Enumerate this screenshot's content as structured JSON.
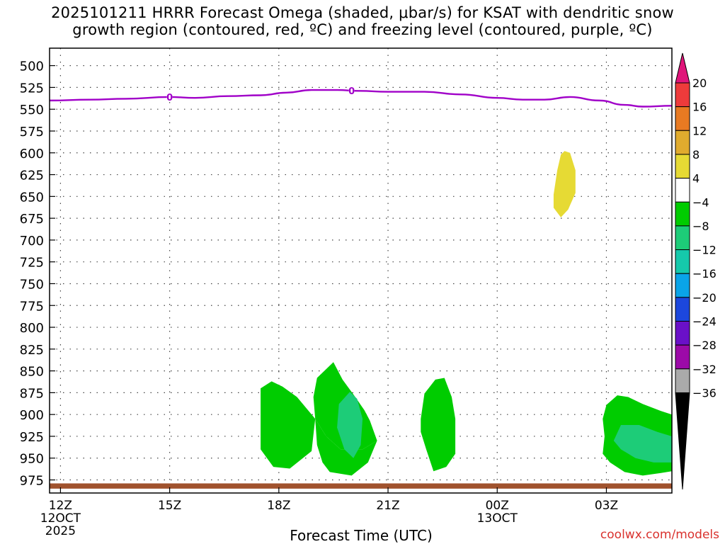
{
  "chart_data": {
    "type": "heatmap",
    "title_line1": "2025101211 HRRR Forecast Omega (shaded, μbar/s) for KSAT with dendritic snow",
    "title_line2": "growth region (contoured, red, ºC) and freezing level (contoured, purple, ºC)",
    "xlabel": "Forecast Time (UTC)",
    "credit": "coolwx.com/models",
    "x_range_hours": [
      -0.3,
      16.8
    ],
    "y_range_hpa": [
      480,
      990
    ],
    "x_ticks": [
      {
        "h": 0,
        "line1": "12Z",
        "line2": "12OCT",
        "line3": "2025"
      },
      {
        "h": 3,
        "line1": "15Z",
        "line2": "",
        "line3": ""
      },
      {
        "h": 6,
        "line1": "18Z",
        "line2": "",
        "line3": ""
      },
      {
        "h": 9,
        "line1": "21Z",
        "line2": "",
        "line3": ""
      },
      {
        "h": 12,
        "line1": "00Z",
        "line2": "13OCT",
        "line3": ""
      },
      {
        "h": 15,
        "line1": "03Z",
        "line2": "",
        "line3": ""
      }
    ],
    "y_ticks": [
      500,
      525,
      550,
      575,
      600,
      625,
      650,
      675,
      700,
      725,
      750,
      775,
      800,
      825,
      850,
      875,
      900,
      925,
      950,
      975
    ],
    "colorbar": {
      "labels": [
        "20",
        "16",
        "12",
        "8",
        "4",
        "−4",
        "−8",
        "−12",
        "−16",
        "−20",
        "−24",
        "−28",
        "−32",
        "−36"
      ],
      "colors": [
        "#ee3b3b",
        "#e87a22",
        "#e0ab2e",
        "#e6da34",
        "#ffffff",
        "#00cc00",
        "#1dcc78",
        "#15c9ab",
        "#0aa4e8",
        "#1c47dd",
        "#6a10c8",
        "#9c0aa8",
        "#aaaaaa"
      ],
      "top_color": "#e0157a",
      "bottom_color": "#000000"
    },
    "freezing_level": {
      "name": "Freezing level (0 ºC)",
      "color": "#a000c8",
      "label": "0",
      "label_hours": [
        3.0,
        8.0
      ],
      "x": [
        -0.3,
        0.8,
        1.8,
        3.0,
        3.7,
        4.6,
        5.5,
        6.2,
        6.9,
        7.6,
        8.2,
        9.0,
        10.0,
        11.0,
        12.0,
        12.7,
        13.3,
        14.0,
        14.8,
        15.5,
        16.0,
        16.8
      ],
      "y": [
        540,
        539,
        538,
        536,
        537,
        535,
        534,
        531,
        528,
        528,
        529,
        530,
        530,
        533,
        537,
        539,
        539,
        536,
        540,
        545,
        547,
        546
      ]
    },
    "omega_regions": [
      {
        "name": "omega-4-to-8-a",
        "value_range": [
          4,
          8
        ],
        "color": "#e6da34",
        "points": [
          [
            13.75,
            602
          ],
          [
            13.65,
            620
          ],
          [
            13.55,
            648
          ],
          [
            13.55,
            663
          ],
          [
            13.75,
            674
          ],
          [
            13.95,
            665
          ],
          [
            14.15,
            646
          ],
          [
            14.15,
            620
          ],
          [
            14.0,
            600
          ],
          [
            13.85,
            598
          ]
        ]
      },
      {
        "name": "omega-m4-to-m8-a",
        "value_range": [
          -8,
          -4
        ],
        "color": "#00cc00",
        "points": [
          [
            5.5,
            870
          ],
          [
            5.8,
            862
          ],
          [
            6.1,
            868
          ],
          [
            6.5,
            880
          ],
          [
            7.0,
            905
          ],
          [
            7.3,
            925
          ],
          [
            7.7,
            940
          ],
          [
            8.3,
            940
          ],
          [
            8.7,
            930
          ],
          [
            8.5,
            907
          ],
          [
            8.35,
            895
          ],
          [
            8.1,
            880
          ],
          [
            7.75,
            860
          ],
          [
            7.5,
            840
          ],
          [
            7.05,
            858
          ],
          [
            6.95,
            880
          ],
          [
            7.0,
            905
          ],
          [
            6.9,
            942
          ],
          [
            6.3,
            962
          ],
          [
            5.85,
            960
          ],
          [
            5.5,
            940
          ]
        ]
      },
      {
        "name": "omega-m4-to-m8-b",
        "value_range": [
          -8,
          -4
        ],
        "color": "#00cc00",
        "points": [
          [
            7.0,
            905
          ],
          [
            7.3,
            925
          ],
          [
            7.7,
            940
          ],
          [
            8.3,
            940
          ],
          [
            8.7,
            930
          ],
          [
            8.45,
            955
          ],
          [
            8.0,
            970
          ],
          [
            7.4,
            966
          ],
          [
            7.2,
            955
          ],
          [
            7.05,
            935
          ]
        ]
      },
      {
        "name": "omega-m8-to-m12-a",
        "value_range": [
          -12,
          -8
        ],
        "color": "#1dcc78",
        "points": [
          [
            7.65,
            888
          ],
          [
            7.95,
            874
          ],
          [
            8.15,
            882
          ],
          [
            8.3,
            905
          ],
          [
            8.25,
            935
          ],
          [
            8.05,
            950
          ],
          [
            7.8,
            940
          ],
          [
            7.6,
            915
          ]
        ]
      },
      {
        "name": "omega-m4-to-m8-c",
        "value_range": [
          -8,
          -4
        ],
        "color": "#00cc00",
        "points": [
          [
            9.9,
            905
          ],
          [
            10.0,
            876
          ],
          [
            10.3,
            860
          ],
          [
            10.55,
            858
          ],
          [
            10.75,
            880
          ],
          [
            10.85,
            905
          ],
          [
            10.85,
            945
          ],
          [
            10.6,
            960
          ],
          [
            10.25,
            965
          ],
          [
            10.05,
            940
          ],
          [
            9.9,
            920
          ]
        ]
      },
      {
        "name": "omega-m4-to-m8-d",
        "value_range": [
          -8,
          -4
        ],
        "color": "#00cc00",
        "points": [
          [
            14.9,
            905
          ],
          [
            15.0,
            889
          ],
          [
            15.3,
            878
          ],
          [
            15.6,
            880
          ],
          [
            16.0,
            888
          ],
          [
            16.5,
            896
          ],
          [
            16.8,
            900
          ],
          [
            16.8,
            965
          ],
          [
            16.5,
            967
          ],
          [
            16.0,
            970
          ],
          [
            15.5,
            966
          ],
          [
            15.1,
            955
          ],
          [
            14.9,
            945
          ],
          [
            14.95,
            925
          ]
        ]
      },
      {
        "name": "omega-m8-to-m12-b",
        "value_range": [
          -12,
          -8
        ],
        "color": "#1dcc78",
        "points": [
          [
            15.2,
            930
          ],
          [
            15.4,
            912
          ],
          [
            15.9,
            912
          ],
          [
            16.4,
            920
          ],
          [
            16.8,
            925
          ],
          [
            16.8,
            955
          ],
          [
            16.3,
            955
          ],
          [
            15.8,
            950
          ],
          [
            15.4,
            940
          ]
        ]
      }
    ],
    "surface_band": {
      "color": "#a0522d",
      "y_top": 979,
      "y_bottom": 985
    }
  }
}
